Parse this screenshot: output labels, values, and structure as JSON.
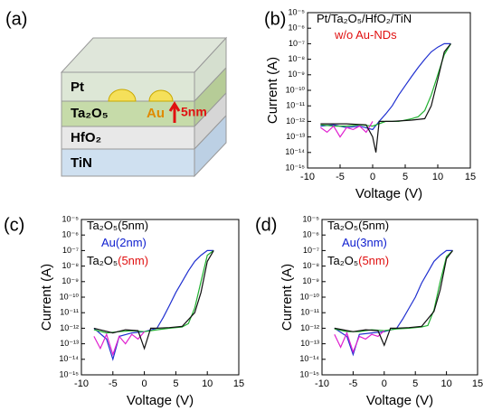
{
  "diagram": {
    "label": "(a)",
    "layers": [
      "Pt",
      "Ta₂O₅",
      "HfO₂",
      "TiN"
    ],
    "particle_label": "Au",
    "thickness_label": "5nm"
  },
  "chart_data": [
    {
      "type": "line",
      "label": "(b)",
      "xlabel": "Voltage (V)",
      "ylabel": "Current (A)",
      "ylog": true,
      "annotations": [
        [
          {
            "text": "Pt/Ta₂O₅/HfO₂/TiN",
            "color": "#000000"
          }
        ],
        [
          {
            "text": "w/o Au-NDs",
            "color": "#e01010"
          }
        ]
      ],
      "xlim": [
        -10,
        15
      ],
      "xticks": [
        -10,
        -5,
        0,
        5,
        10,
        15
      ],
      "ylim": [
        1e-15,
        1e-05
      ],
      "yticks": [
        {
          "value": 1e-15,
          "label": "10⁻¹⁵"
        },
        {
          "value": 1e-14,
          "label": "10⁻¹⁴"
        },
        {
          "value": 1e-13,
          "label": "10⁻¹³"
        },
        {
          "value": 1e-12,
          "label": "10⁻¹²"
        },
        {
          "value": 1e-11,
          "label": "10⁻¹¹"
        },
        {
          "value": 1e-10,
          "label": "10⁻¹⁰"
        },
        {
          "value": 1e-09,
          "label": "10⁻⁹"
        },
        {
          "value": 1e-08,
          "label": "10⁻⁸"
        },
        {
          "value": 1e-07,
          "label": "10⁻⁷"
        },
        {
          "value": 1e-06,
          "label": "10⁻⁶"
        },
        {
          "value": 1e-05,
          "label": "10⁻⁵"
        }
      ],
      "series": [
        {
          "color": "#2030d0",
          "x": [
            -8,
            -6,
            -4,
            -2,
            0,
            1,
            2,
            3,
            4,
            5,
            6,
            7,
            8,
            9,
            10,
            11,
            12
          ],
          "values": [
            5e-13,
            6e-13,
            4e-13,
            5e-13,
            3e-13,
            1e-12,
            3e-12,
            1e-11,
            5e-11,
            2e-10,
            8e-10,
            3e-09,
            1e-08,
            3e-08,
            6e-08,
            1e-07,
            1e-07
          ]
        },
        {
          "color": "#20b030",
          "x": [
            -8,
            -6,
            -4,
            -2,
            0,
            2,
            4,
            6,
            7,
            8,
            9,
            10,
            11,
            12
          ],
          "values": [
            6e-13,
            5e-13,
            5e-13,
            6e-13,
            5e-13,
            1e-12,
            1e-12,
            1.5e-12,
            2e-12,
            5e-12,
            5e-11,
            1e-09,
            2e-08,
            1e-07
          ]
        },
        {
          "color": "#e020d0",
          "x": [
            -8,
            -7,
            -6,
            -5,
            -4,
            -3,
            -2,
            -1,
            0
          ],
          "values": [
            4e-13,
            2e-13,
            5e-13,
            1e-13,
            4e-13,
            3e-13,
            5e-13,
            2e-13,
            1e-12
          ]
        },
        {
          "color": "#101010",
          "x": [
            -8,
            -4,
            -1,
            0,
            0.5,
            1,
            3,
            6,
            8,
            9,
            10,
            11,
            12
          ],
          "values": [
            7e-13,
            7e-13,
            6e-13,
            1e-13,
            1e-14,
            1e-12,
            1e-12,
            1.2e-12,
            1.5e-12,
            1e-11,
            5e-10,
            3e-08,
            1e-07
          ]
        }
      ]
    },
    {
      "type": "line",
      "label": "(c)",
      "xlabel": "Voltage (V)",
      "ylabel": "Current (A)",
      "ylog": true,
      "annotations": [
        [
          {
            "text": "Ta₂O₅(5nm)",
            "color": "#000000"
          }
        ],
        [
          {
            "text": "Au(2nm)",
            "color": "#1020d0"
          }
        ],
        [
          {
            "text": "Ta₂O₅",
            "color": "#000000"
          },
          {
            "text": "(5nm)",
            "color": "#e01010"
          }
        ]
      ],
      "xlim": [
        -10,
        15
      ],
      "xticks": [
        -10,
        -5,
        0,
        5,
        10,
        15
      ],
      "ylim": [
        1e-15,
        1e-05
      ],
      "yticks": [
        {
          "value": 1e-15,
          "label": "10⁻¹⁵"
        },
        {
          "value": 1e-14,
          "label": "10⁻¹⁴"
        },
        {
          "value": 1e-13,
          "label": "10⁻¹³"
        },
        {
          "value": 1e-12,
          "label": "10⁻¹²"
        },
        {
          "value": 1e-11,
          "label": "10⁻¹¹"
        },
        {
          "value": 1e-10,
          "label": "10⁻¹⁰"
        },
        {
          "value": 1e-09,
          "label": "10⁻⁹"
        },
        {
          "value": 1e-08,
          "label": "10⁻⁸"
        },
        {
          "value": 1e-07,
          "label": "10⁻⁷"
        },
        {
          "value": 1e-06,
          "label": "10⁻⁶"
        },
        {
          "value": 1e-05,
          "label": "10⁻⁵"
        }
      ],
      "series": [
        {
          "color": "#2030d0",
          "x": [
            -8,
            -6,
            -5,
            -4,
            -2,
            0,
            2,
            3,
            4,
            5,
            6,
            7,
            8,
            9,
            10,
            11
          ],
          "values": [
            1e-12,
            2e-13,
            1e-14,
            3e-13,
            5e-13,
            6e-13,
            1e-12,
            5e-12,
            3e-11,
            2e-10,
            1e-09,
            5e-09,
            2e-08,
            5e-08,
            1e-07,
            1e-07
          ]
        },
        {
          "color": "#20b030",
          "x": [
            -8,
            -6,
            -4,
            -2,
            0,
            2,
            4,
            6,
            7,
            8,
            9,
            10,
            11
          ],
          "values": [
            8e-13,
            5e-13,
            6e-13,
            7e-13,
            6e-13,
            8e-13,
            1e-12,
            1.2e-12,
            2e-12,
            2e-11,
            1e-09,
            5e-08,
            1e-07
          ]
        },
        {
          "color": "#e020d0",
          "x": [
            -8,
            -7,
            -6,
            -5,
            -4,
            -3,
            -2,
            -1,
            0
          ],
          "values": [
            3e-13,
            5e-14,
            4e-13,
            2e-14,
            3e-13,
            1e-13,
            4e-13,
            2e-13,
            6e-13
          ]
        },
        {
          "color": "#101010",
          "x": [
            -8,
            -5,
            -3,
            -1,
            0,
            1,
            2,
            4,
            6,
            8,
            9,
            10,
            11
          ],
          "values": [
            1e-12,
            5e-13,
            8e-13,
            7e-13,
            5e-14,
            1e-12,
            1e-12,
            1.1e-12,
            1.3e-12,
            1e-11,
            2e-10,
            2e-08,
            1e-07
          ]
        }
      ]
    },
    {
      "type": "line",
      "label": "(d)",
      "xlabel": "Voltage (V)",
      "ylabel": "Current (A)",
      "ylog": true,
      "annotations": [
        [
          {
            "text": "Ta₂O₅(5nm)",
            "color": "#000000"
          }
        ],
        [
          {
            "text": "Au(3nm)",
            "color": "#1020d0"
          }
        ],
        [
          {
            "text": "Ta₂O₅",
            "color": "#000000"
          },
          {
            "text": "(5nm)",
            "color": "#e01010"
          }
        ]
      ],
      "xlim": [
        -10,
        15
      ],
      "xticks": [
        -10,
        -5,
        0,
        5,
        10,
        15
      ],
      "ylim": [
        1e-15,
        1e-05
      ],
      "yticks": [
        {
          "value": 1e-15,
          "label": "10⁻¹⁵"
        },
        {
          "value": 1e-14,
          "label": "10⁻¹⁴"
        },
        {
          "value": 1e-13,
          "label": "10⁻¹³"
        },
        {
          "value": 1e-12,
          "label": "10⁻¹²"
        },
        {
          "value": 1e-11,
          "label": "10⁻¹¹"
        },
        {
          "value": 1e-10,
          "label": "10⁻¹⁰"
        },
        {
          "value": 1e-09,
          "label": "10⁻⁹"
        },
        {
          "value": 1e-08,
          "label": "10⁻⁸"
        },
        {
          "value": 1e-07,
          "label": "10⁻⁷"
        },
        {
          "value": 1e-06,
          "label": "10⁻⁶"
        },
        {
          "value": 1e-05,
          "label": "10⁻⁵"
        }
      ],
      "series": [
        {
          "color": "#2030d0",
          "x": [
            -8,
            -6,
            -5,
            -4,
            -2,
            0,
            2,
            3,
            4,
            5,
            6,
            7,
            8,
            9,
            10,
            11
          ],
          "values": [
            1e-12,
            3e-13,
            2e-14,
            4e-13,
            5e-13,
            6e-13,
            1e-12,
            4e-12,
            2e-11,
            1e-10,
            8e-10,
            4e-09,
            2e-08,
            5e-08,
            1e-07,
            1e-07
          ]
        },
        {
          "color": "#20b030",
          "x": [
            -8,
            -6,
            -4,
            -2,
            0,
            2,
            4,
            6,
            7,
            8,
            9,
            10,
            11
          ],
          "values": [
            9e-13,
            6e-13,
            6e-13,
            8e-13,
            7e-13,
            9e-13,
            1e-12,
            1.2e-12,
            1.5e-12,
            1.5e-11,
            1e-09,
            4e-08,
            1e-07
          ]
        },
        {
          "color": "#e020d0",
          "x": [
            -8,
            -7,
            -6,
            -5,
            -4,
            -3,
            -2,
            -1,
            0
          ],
          "values": [
            4e-13,
            6e-14,
            5e-13,
            3e-14,
            3e-13,
            2e-13,
            4e-13,
            3e-13,
            7e-13
          ]
        },
        {
          "color": "#101010",
          "x": [
            -8,
            -5,
            -3,
            -1,
            0,
            1,
            2,
            4,
            6,
            8,
            9,
            10,
            11
          ],
          "values": [
            1e-12,
            6e-13,
            8e-13,
            7e-13,
            8e-14,
            1e-12,
            1e-12,
            1.1e-12,
            1.3e-12,
            1.2e-11,
            3e-10,
            3e-08,
            1e-07
          ]
        }
      ]
    }
  ]
}
